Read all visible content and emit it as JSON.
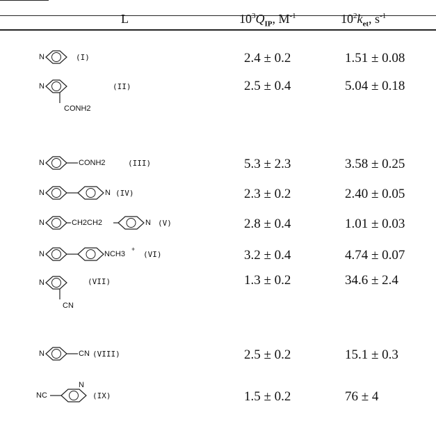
{
  "header": {
    "ligand": "L",
    "qip_pre": "10",
    "qip_exp": "3",
    "qip_sym": "Q",
    "qip_sub": "IP",
    "qip_unit": ", M",
    "qip_unit_exp": "-1",
    "ket_pre": "10",
    "ket_exp": "2",
    "ket_sym": "k",
    "ket_sub": "et",
    "ket_unit": ", s",
    "ket_unit_exp": "-1"
  },
  "atoms": {
    "n": "N",
    "cn": "CN",
    "nc": "NC"
  },
  "substituents": {
    "conh2_r2": "CONH2",
    "conh2_r3": "CONH2",
    "ethane": "CH2CH2",
    "methyl": "NCH3",
    "plus": "+"
  },
  "rows": [
    {
      "label": "(I)",
      "q": "2.4 ± 0.2",
      "k": "1.51 ± 0.08"
    },
    {
      "label": "(II)",
      "q": "2.5 ± 0.4",
      "k": "5.04 ± 0.18"
    },
    {
      "label": "(III)",
      "q": "5.3 ± 2.3",
      "k": "3.58 ± 0.25"
    },
    {
      "label": "(IV)",
      "q": "2.3 ± 0.2",
      "k": "2.40 ± 0.05"
    },
    {
      "label": "(V)",
      "q": "2.8 ± 0.4",
      "k": "1.01 ± 0.03"
    },
    {
      "label": "(VI)",
      "q": "3.2 ± 0.4",
      "k": "4.74 ± 0.07"
    },
    {
      "label": "(VII)",
      "q": "1.3 ± 0.2",
      "k": "34.6 ± 2.4"
    },
    {
      "label": "(VIII)",
      "q": "2.5 ± 0.2",
      "k": "15.1 ± 0.3"
    },
    {
      "label": "(IX)",
      "q": "1.5 ± 0.2",
      "k": "76 ± 4"
    }
  ]
}
